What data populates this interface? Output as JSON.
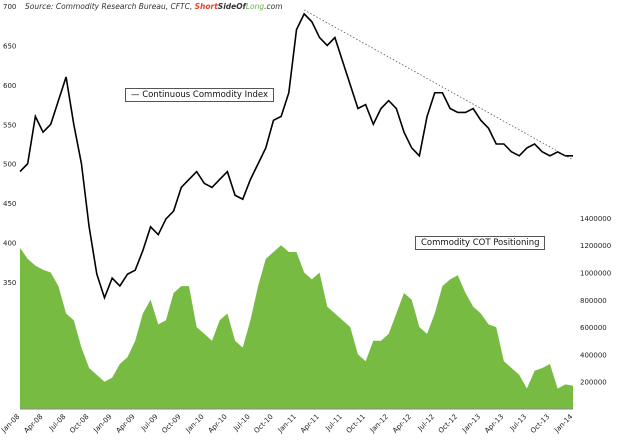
{
  "source": {
    "prefix": "Source: Commodity Research Bureau, CFTC, ",
    "brand_short": "Short",
    "brand_side": "SideOf",
    "brand_long": "Long",
    "brand_suffix": ".com"
  },
  "chart_data": {
    "type": "line+area",
    "x_ticks": [
      "Jan-08",
      "Apr-08",
      "Jul-08",
      "Oct-08",
      "Jan-09",
      "Apr-09",
      "Jul-09",
      "Oct-09",
      "Jan-10",
      "Apr-10",
      "Jul-10",
      "Oct-10",
      "Jan-11",
      "Apr-11",
      "Jul-11",
      "Oct-11",
      "Jan-12",
      "Apr-12",
      "Jul-12",
      "Oct-12",
      "Jan-13",
      "Apr-13",
      "Jul-13",
      "Oct-13",
      "Jan-14"
    ],
    "left_axis": {
      "ticks": [
        350,
        400,
        450,
        500,
        550,
        600,
        650,
        700
      ],
      "range": [
        300,
        700
      ]
    },
    "right_axis": {
      "ticks": [
        200000,
        400000,
        600000,
        800000,
        1000000,
        1200000,
        1400000
      ],
      "range": [
        0,
        1400000
      ]
    },
    "series": [
      {
        "name": "Continuous Commodity Index",
        "type": "line",
        "axis": "left",
        "color": "#000000",
        "values": [
          490,
          500,
          560,
          540,
          550,
          580,
          610,
          550,
          500,
          420,
          360,
          330,
          355,
          345,
          360,
          365,
          390,
          420,
          410,
          430,
          440,
          470,
          480,
          490,
          475,
          470,
          480,
          490,
          460,
          455,
          480,
          500,
          520,
          555,
          560,
          590,
          670,
          690,
          680,
          660,
          650,
          660,
          630,
          600,
          570,
          575,
          550,
          570,
          580,
          570,
          540,
          520,
          510,
          560,
          590,
          590,
          570,
          565,
          565,
          570,
          555,
          545,
          525,
          525,
          515,
          510,
          520,
          525,
          515,
          510,
          515,
          510,
          510
        ]
      },
      {
        "name": "Commodity COT Positioning",
        "type": "area",
        "axis": "right",
        "color": "#78bb43",
        "values": [
          1180000,
          1100000,
          1050000,
          1020000,
          1000000,
          900000,
          700000,
          650000,
          450000,
          300000,
          250000,
          200000,
          230000,
          330000,
          380000,
          500000,
          700000,
          800000,
          620000,
          650000,
          850000,
          900000,
          900000,
          600000,
          550000,
          500000,
          650000,
          700000,
          500000,
          450000,
          650000,
          900000,
          1100000,
          1150000,
          1200000,
          1150000,
          1150000,
          1000000,
          950000,
          1000000,
          750000,
          700000,
          650000,
          600000,
          400000,
          350000,
          500000,
          500000,
          550000,
          700000,
          850000,
          800000,
          600000,
          550000,
          700000,
          900000,
          950000,
          980000,
          850000,
          750000,
          700000,
          620000,
          600000,
          350000,
          300000,
          250000,
          150000,
          280000,
          300000,
          330000,
          150000,
          180000,
          170000
        ]
      }
    ],
    "trendline": {
      "style": "dotted",
      "from": {
        "month_index": 37,
        "value": 695
      },
      "to": {
        "month_index": 72,
        "value": 505
      }
    },
    "legend": [
      "Continuous Commodity Index",
      "Commodity COT Positioning"
    ]
  },
  "colors": {
    "area": "#78bb43",
    "line": "#000000"
  }
}
